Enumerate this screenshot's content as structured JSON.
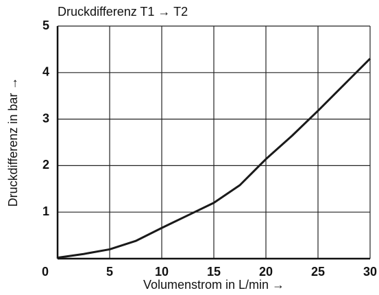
{
  "chart_data": {
    "type": "line",
    "title": "Druckdifferenz T1 → T2",
    "x_label": "Volumenstrom in L/min →",
    "y_label": "Druckdifferenz in bar →",
    "x": [
      0,
      2.5,
      5,
      7.5,
      10,
      12.5,
      15,
      17.5,
      20,
      22.5,
      25,
      27.5,
      30
    ],
    "series": [
      {
        "name": "Druckdifferenz",
        "color": "#1a1a1a",
        "values": [
          0.02,
          0.1,
          0.2,
          0.38,
          0.66,
          0.93,
          1.2,
          1.58,
          2.14,
          2.64,
          3.18,
          3.74,
          4.3
        ]
      }
    ],
    "xlim": [
      0,
      30
    ],
    "xticks": [
      0,
      5,
      10,
      15,
      20,
      25,
      30
    ],
    "ylim": [
      0,
      5
    ],
    "yticks": [
      1,
      2,
      3,
      4,
      5
    ],
    "grid": true
  }
}
